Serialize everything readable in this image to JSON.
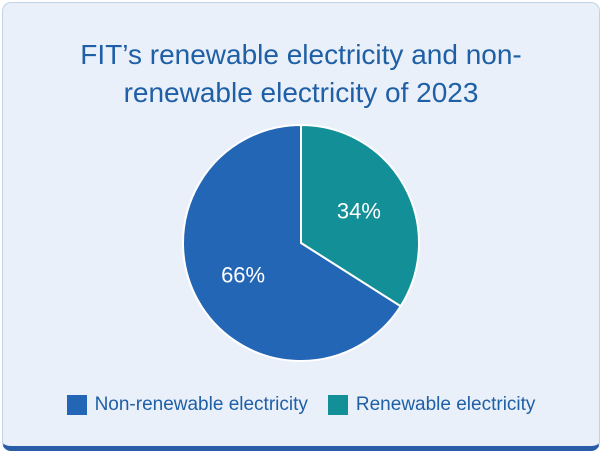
{
  "chart_data": {
    "type": "pie",
    "title": "FIT’s renewable electricity and non-renewable electricity of 2023",
    "slices": [
      {
        "label": "Renewable electricity",
        "value": 34,
        "display": "34%",
        "color": "#128f97"
      },
      {
        "label": "Non-renewable electricity",
        "value": 66,
        "display": "66%",
        "color": "#2466b6"
      }
    ],
    "legend": {
      "placement": "bottom",
      "entries": [
        "Non-renewable electricity",
        "Renewable electricity"
      ]
    }
  }
}
